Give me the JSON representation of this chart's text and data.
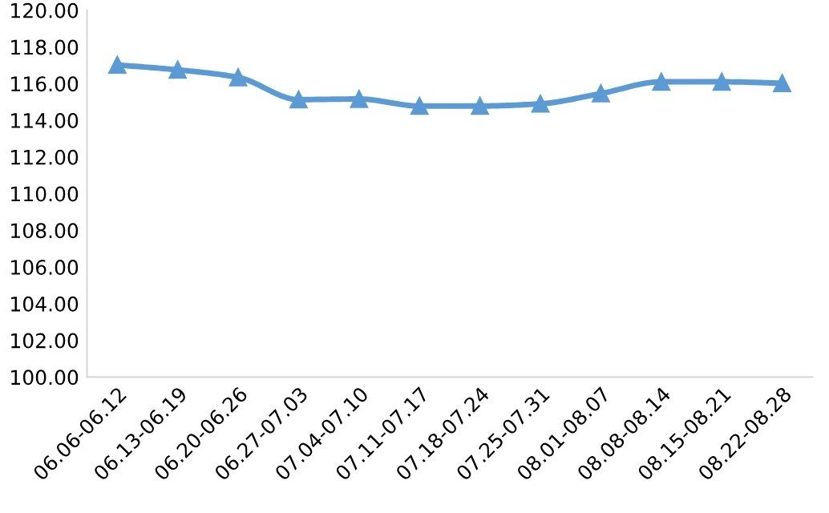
{
  "chart_data": {
    "type": "line",
    "categories": [
      "06.06-06.12",
      "06.13-06.19",
      "06.20-06.26",
      "06.27-07.03",
      "07.04-07.10",
      "07.11-07.17",
      "07.18-07.24",
      "07.25-07.31",
      "08.01-08.07",
      "08.08-08.14",
      "08.15-08.21",
      "08.22-08.28"
    ],
    "series": [
      {
        "color": "#5b9bd5",
        "values": [
          117.02,
          116.75,
          116.34,
          115.13,
          115.16,
          114.78,
          114.78,
          114.9,
          115.46,
          116.1,
          116.1,
          116.02
        ]
      }
    ],
    "ylim": [
      100,
      120
    ],
    "yticks": [
      {
        "value": 100,
        "label": "100.00"
      },
      {
        "value": 102,
        "label": "102.00"
      },
      {
        "value": 104,
        "label": "104.00"
      },
      {
        "value": 106,
        "label": "106.00"
      },
      {
        "value": 108,
        "label": "108.00"
      },
      {
        "value": 110,
        "label": "110.00"
      },
      {
        "value": 112,
        "label": "112.00"
      },
      {
        "value": 114,
        "label": "114.00"
      },
      {
        "value": 116,
        "label": "116.00"
      },
      {
        "value": 118,
        "label": "118.00"
      },
      {
        "value": 120,
        "label": "120.00"
      }
    ],
    "marker": "triangle",
    "line_style": "solid",
    "grid": false,
    "legend": false
  }
}
